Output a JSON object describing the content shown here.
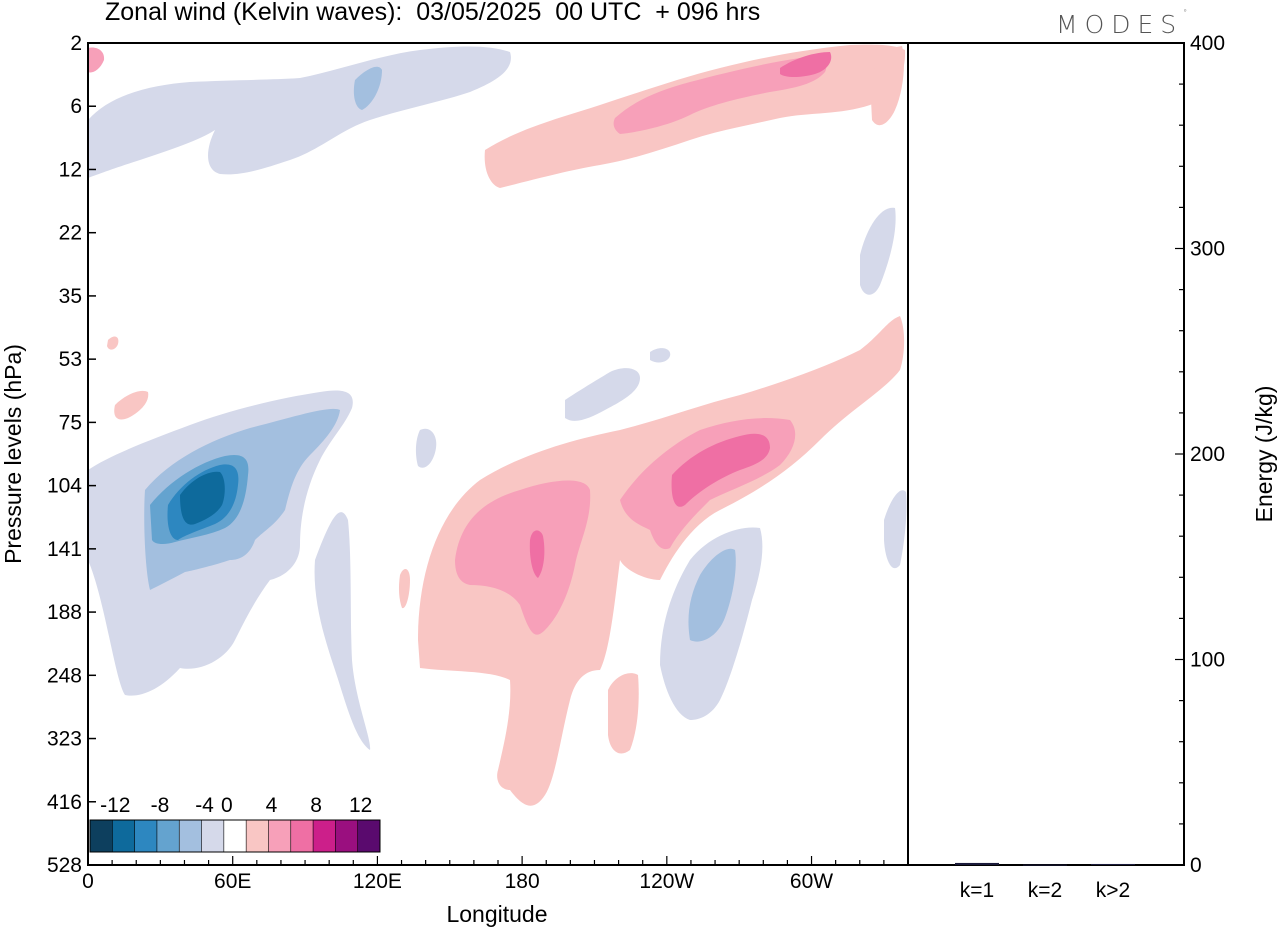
{
  "header": {
    "title": "Zonal wind (Kelvin waves):  03/05/2025  00 UTC  + 096 hrs",
    "brand": "MODES",
    "brand_mark": "°"
  },
  "chart_data": [
    {
      "type": "heatmap",
      "title": "Zonal wind (Kelvin waves):  03/05/2025  00 UTC  + 096 hrs",
      "xlabel": "Longitude",
      "ylabel": "Pressure levels (hPa)",
      "x_ticks": [
        "0",
        "60E",
        "120E",
        "180",
        "120W",
        "60W"
      ],
      "x_tick_values": [
        0,
        60,
        120,
        180,
        240,
        300
      ],
      "xlim": [
        0,
        340
      ],
      "y_ticks": [
        "2",
        "6",
        "12",
        "22",
        "35",
        "53",
        "75",
        "104",
        "141",
        "188",
        "248",
        "323",
        "416",
        "528"
      ],
      "y_scale": "model levels, pressure increasing downward",
      "colorbar": {
        "tick_labels": [
          "-12",
          "-8",
          "-4",
          "0",
          "4",
          "8",
          "12"
        ],
        "bins": [
          -14,
          -12,
          -10,
          -8,
          -6,
          -4,
          -2,
          2,
          4,
          6,
          8,
          10,
          12,
          14
        ],
        "colors": [
          "#0d3f5e",
          "#0e6a9c",
          "#2d87c0",
          "#64a3cf",
          "#a3bfdf",
          "#d5d9ea",
          "#ffffff",
          "#f9c6c4",
          "#f7a0b9",
          "#ef6fa4",
          "#cc1f8a",
          "#9a0f7f",
          "#5a0a6e"
        ]
      },
      "features": [
        {
          "sign": "negative",
          "max_abs": -12,
          "lon_range": [
            0,
            120
          ],
          "level_range": [
            "75",
            "188"
          ],
          "description": "upper-troposphere easterly anomaly"
        },
        {
          "sign": "positive",
          "max_abs": 8,
          "lon_range": [
            140,
            300
          ],
          "level_range": [
            "53",
            "416"
          ],
          "description": "westerly anomaly tilting eastward"
        },
        {
          "sign": "negative",
          "max_abs": -6,
          "lon_range": [
            240,
            275
          ],
          "level_range": [
            "141",
            "248"
          ]
        },
        {
          "sign": "positive",
          "max_abs": 8,
          "lon_range": [
            165,
            300
          ],
          "level_range": [
            "2",
            "12"
          ]
        },
        {
          "sign": "negative",
          "max_abs": -6,
          "lon_range": [
            0,
            120
          ],
          "level_range": [
            "2",
            "12"
          ]
        }
      ]
    },
    {
      "type": "bar",
      "ylabel": "Energy (J/kg)",
      "categories": [
        "k=1",
        "k=2",
        "k>2"
      ],
      "values": [
        1.0,
        0.2,
        0.5
      ],
      "ylim": [
        0,
        400
      ],
      "y_ticks": [
        0,
        100,
        200,
        300,
        400
      ]
    }
  ]
}
